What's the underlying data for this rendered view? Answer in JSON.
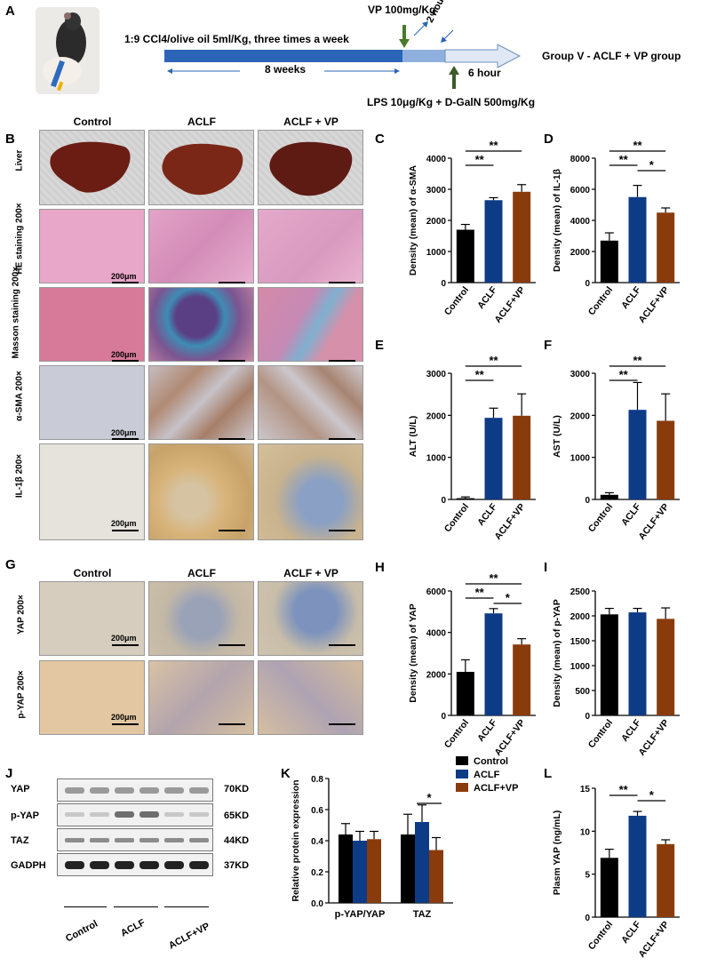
{
  "panelA": {
    "label": "A",
    "protocol": "1:9 CCl4/olive oil 5ml/Kg, three times a week",
    "duration": "8 weeks",
    "vp": "VP  100mg/Kg",
    "vp_time": "2 hour",
    "lps": "LPS 10μg/Kg + D-GalN 500mg/Kg",
    "lps_time": "6 hour",
    "group": "Group V - ACLF + VP group"
  },
  "panelB": {
    "label": "B",
    "columns": [
      "Control",
      "ACLF",
      "ACLF + VP"
    ],
    "rows": [
      "Liver",
      "HE staining 200×",
      "Masson staining 200×",
      "α-SMA 200×",
      "IL-1β 200×"
    ],
    "scale": "200μm"
  },
  "panelG": {
    "label": "G",
    "columns": [
      "Control",
      "ACLF",
      "ACLF + VP"
    ],
    "rows": [
      "YAP 200×",
      "p-YAP 200×"
    ],
    "scale": "200μm"
  },
  "panelJ": {
    "label": "J",
    "bands": [
      "YAP",
      "p-YAP",
      "TAZ",
      "GADPH"
    ],
    "sizes": [
      "70KD",
      "65KD",
      "44KD",
      "37KD"
    ],
    "groups": [
      "Control",
      "ACLF",
      "ACLF+VP"
    ]
  },
  "colors": {
    "control": "#000000",
    "aclf": "#0d3b86",
    "vp": "#8a3b0c"
  },
  "chart_data": [
    {
      "id": "C",
      "type": "bar",
      "categories": [
        "Control",
        "ACLF",
        "ACLF+VP"
      ],
      "values": [
        1700,
        2650,
        2920
      ],
      "errors": [
        170,
        80,
        230
      ],
      "ylabel": "Density (mean) of α-SMA",
      "ylim": [
        0,
        4000
      ],
      "yticks": [
        "0",
        "1000",
        "2000",
        "3000",
        "4000"
      ],
      "sig": [
        {
          "from": 0,
          "to": 1,
          "text": "**"
        },
        {
          "from": 0,
          "to": 2,
          "text": "**"
        }
      ]
    },
    {
      "id": "D",
      "type": "bar",
      "categories": [
        "Control",
        "ACLF",
        "ACLF+VP"
      ],
      "values": [
        2700,
        5500,
        4500
      ],
      "errors": [
        500,
        750,
        300
      ],
      "ylabel": "Density (mean) of IL-1β",
      "ylim": [
        0,
        8000
      ],
      "yticks": [
        "0",
        "2000",
        "4000",
        "6000",
        "8000"
      ],
      "sig": [
        {
          "from": 0,
          "to": 1,
          "text": "**"
        },
        {
          "from": 1,
          "to": 2,
          "text": "*"
        },
        {
          "from": 0,
          "to": 2,
          "text": "**"
        }
      ]
    },
    {
      "id": "E",
      "type": "bar",
      "categories": [
        "Control",
        "ACLF",
        "ACLF+VP"
      ],
      "values": [
        30,
        1940,
        1990
      ],
      "errors": [
        30,
        230,
        520
      ],
      "ylabel": "ALT (U/L)",
      "ylim": [
        0,
        3000
      ],
      "yticks": [
        "0",
        "1000",
        "2000",
        "3000"
      ],
      "sig": [
        {
          "from": 0,
          "to": 1,
          "text": "**"
        },
        {
          "from": 0,
          "to": 2,
          "text": "**"
        }
      ]
    },
    {
      "id": "F",
      "type": "bar",
      "categories": [
        "Control",
        "ACLF",
        "ACLF+VP"
      ],
      "values": [
        110,
        2130,
        1870
      ],
      "errors": [
        50,
        650,
        640
      ],
      "ylabel": "AST (U/L)",
      "ylim": [
        0,
        3000
      ],
      "yticks": [
        "0",
        "1000",
        "2000",
        "3000"
      ],
      "sig": [
        {
          "from": 0,
          "to": 1,
          "text": "**"
        },
        {
          "from": 0,
          "to": 2,
          "text": "**"
        }
      ]
    },
    {
      "id": "H",
      "type": "bar",
      "categories": [
        "Control",
        "ACLF",
        "ACLF+VP"
      ],
      "values": [
        2100,
        4920,
        3420
      ],
      "errors": [
        580,
        230,
        280
      ],
      "ylabel": "Density (mean) of YAP",
      "ylim": [
        0,
        6000
      ],
      "yticks": [
        "0",
        "2000",
        "4000",
        "6000"
      ],
      "sig": [
        {
          "from": 0,
          "to": 1,
          "text": "**"
        },
        {
          "from": 1,
          "to": 2,
          "text": "*"
        },
        {
          "from": 0,
          "to": 2,
          "text": "**"
        }
      ]
    },
    {
      "id": "I",
      "type": "bar",
      "categories": [
        "Control",
        "ACLF",
        "ACLF+VP"
      ],
      "values": [
        2030,
        2070,
        1940
      ],
      "errors": [
        120,
        80,
        220
      ],
      "ylabel": "Density (mean) of p-YAP",
      "ylim": [
        0,
        2500
      ],
      "yticks": [
        "0",
        "500",
        "1000",
        "1500",
        "2000",
        "2500"
      ],
      "sig": []
    },
    {
      "id": "K",
      "type": "bar",
      "categories": [
        "p-YAP/YAP",
        "TAZ"
      ],
      "series": [
        {
          "name": "Control",
          "values": [
            0.44,
            0.44
          ],
          "errors": [
            0.07,
            0.13
          ]
        },
        {
          "name": "ACLF",
          "values": [
            0.4,
            0.52
          ],
          "errors": [
            0.06,
            0.11
          ]
        },
        {
          "name": "ACLF+VP",
          "values": [
            0.41,
            0.34
          ],
          "errors": [
            0.05,
            0.08
          ]
        }
      ],
      "ylabel": "Relative protein expression",
      "ylim": [
        0,
        0.8
      ],
      "yticks": [
        "0.0",
        "0.2",
        "0.4",
        "0.6",
        "0.8"
      ],
      "legend": "top-right",
      "sig": [
        {
          "group": 1,
          "from": 1,
          "to": 2,
          "text": "*"
        }
      ]
    },
    {
      "id": "L",
      "type": "bar",
      "categories": [
        "Control",
        "ACLF",
        "ACLF+VP"
      ],
      "values": [
        6.9,
        11.8,
        8.5
      ],
      "errors": [
        1.0,
        0.5,
        0.5
      ],
      "ylabel": "Plasm YAP (ng/mL)",
      "ylim": [
        0,
        15
      ],
      "yticks": [
        "0",
        "5",
        "10",
        "15"
      ],
      "sig": [
        {
          "from": 0,
          "to": 1,
          "text": "**"
        },
        {
          "from": 1,
          "to": 2,
          "text": "*"
        }
      ]
    }
  ]
}
